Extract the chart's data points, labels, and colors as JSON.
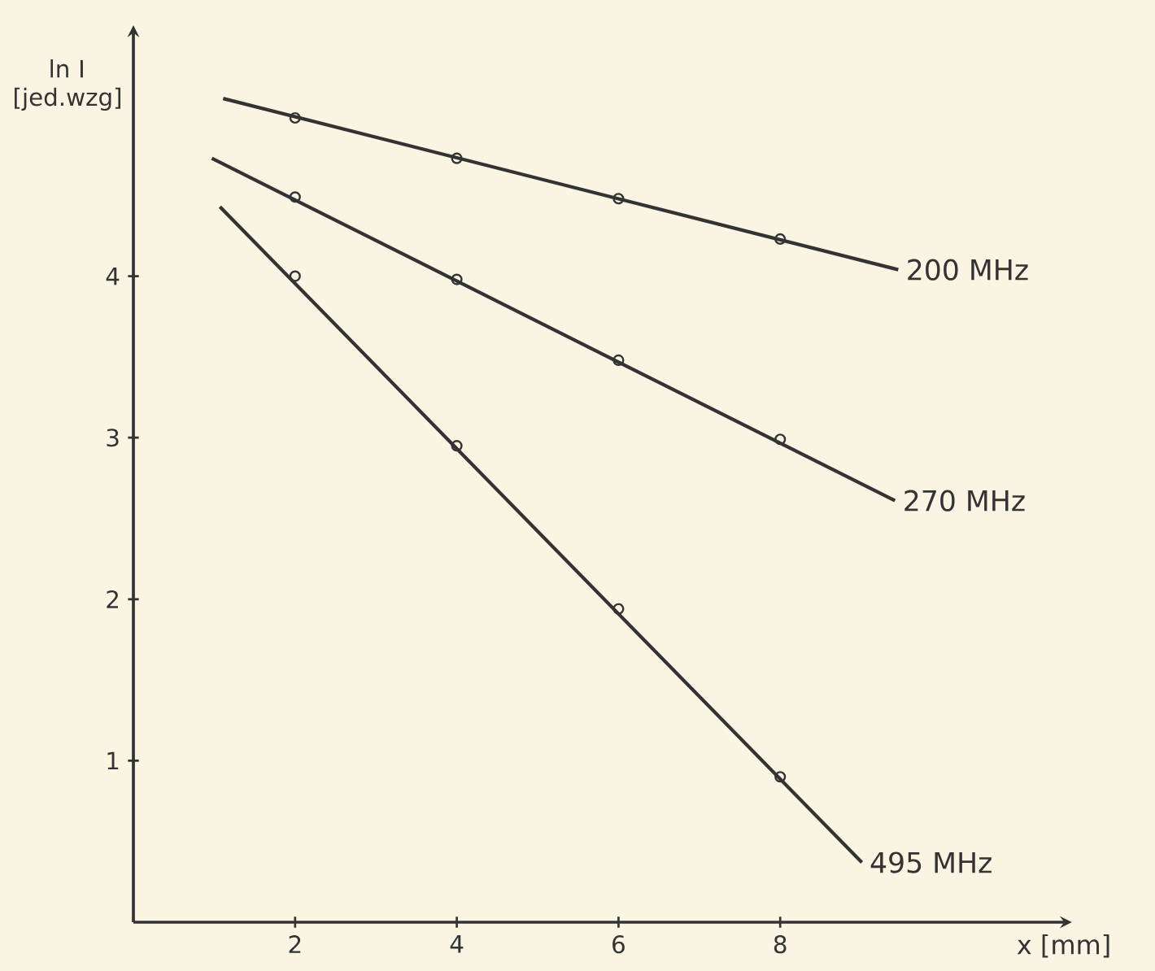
{
  "chart_data": {
    "type": "line",
    "xlabel": "x [mm]",
    "ylabel": "ln I [jed.wzg]",
    "xlim": [
      0,
      11.5
    ],
    "ylim": [
      0,
      5.5
    ],
    "xticks": [
      2,
      4,
      6,
      8
    ],
    "yticks": [
      1,
      2,
      3,
      4
    ],
    "grid": false,
    "legend": false,
    "series": [
      {
        "type": "scatter",
        "marker": "circle",
        "color": "#333333",
        "x": [
          2,
          4,
          6,
          8
        ],
        "values": [
          4.98,
          4.73,
          4.48,
          4.23
        ]
      },
      {
        "type": "scatter",
        "marker": "circle",
        "color": "#333333",
        "x": [
          2,
          4,
          6,
          8
        ],
        "values": [
          4.49,
          3.98,
          3.48,
          2.99
        ]
      },
      {
        "type": "scatter",
        "marker": "circle",
        "color": "#333333",
        "x": [
          2,
          4,
          6,
          8
        ],
        "values": [
          4.0,
          2.95,
          1.94,
          0.9
        ]
      },
      {
        "marker": "none",
        "name": "200 MHz",
        "color": "#333333",
        "x": [
          1.11,
          9.46
        ],
        "values": [
          5.1,
          4.04
        ]
      },
      {
        "marker": "none",
        "name": "270 MHz",
        "color": "#333333",
        "x": [
          0.97,
          9.42
        ],
        "values": [
          4.73,
          2.61
        ]
      },
      {
        "marker": "none",
        "name": "495 MHz",
        "color": "#333333",
        "x": [
          1.07,
          9.01
        ],
        "values": [
          4.43,
          0.37
        ]
      }
    ]
  }
}
